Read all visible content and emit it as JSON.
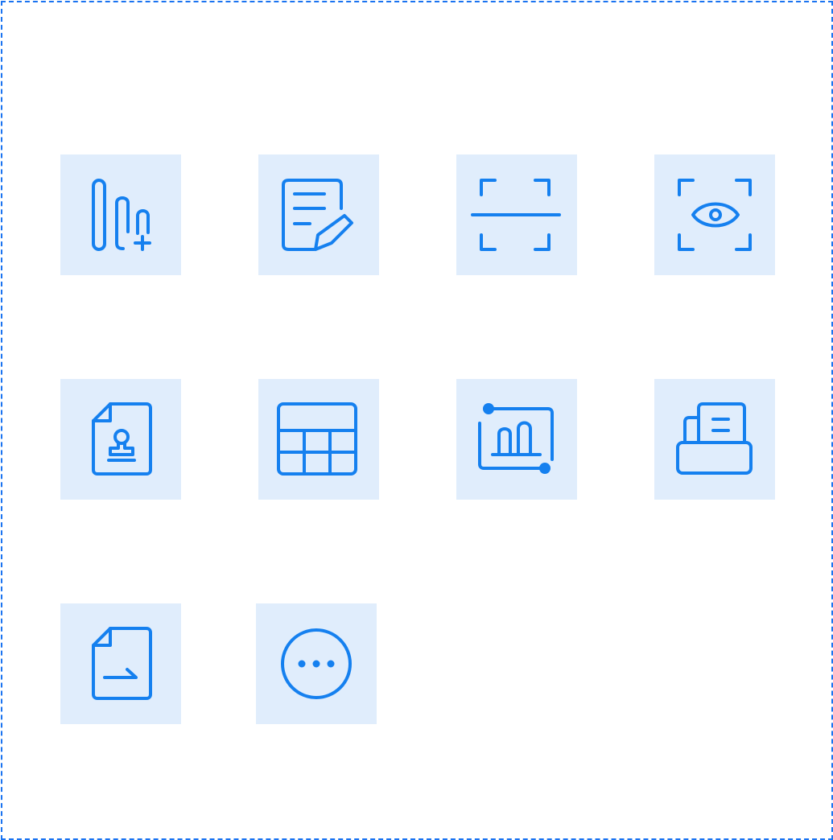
{
  "colors": {
    "tile_background": "#e0edfc",
    "icon_stroke": "#1580ef",
    "frame_border": "#1a73f0"
  },
  "icons": [
    {
      "name": "attachment-add-icon"
    },
    {
      "name": "document-edit-icon"
    },
    {
      "name": "scan-icon"
    },
    {
      "name": "eye-scan-icon"
    },
    {
      "name": "stamp-document-icon"
    },
    {
      "name": "table-icon"
    },
    {
      "name": "chart-report-icon"
    },
    {
      "name": "fax-icon"
    },
    {
      "name": "document-sign-icon"
    },
    {
      "name": "more-icon"
    }
  ]
}
